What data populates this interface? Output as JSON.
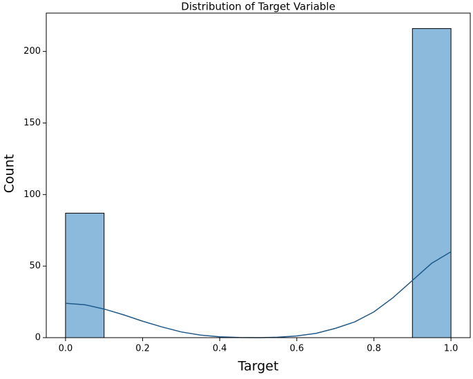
{
  "chart_data": {
    "type": "histogram",
    "title": "Distribution of Target Variable",
    "x_label": "Target",
    "y_label": "Count",
    "bins": [
      0,
      0.1,
      0.2,
      0.3,
      0.4,
      0.5,
      0.6,
      0.7,
      0.8,
      0.9,
      1.0
    ],
    "counts": [
      87,
      0,
      0,
      0,
      0,
      0,
      0,
      0,
      0,
      216
    ],
    "color": "#8bbadc",
    "edge_color": "#000000",
    "kde": {
      "x": [
        0,
        0.05,
        0.1,
        0.15,
        0.2,
        0.25,
        0.3,
        0.35,
        0.4,
        0.45,
        0.5,
        0.55,
        0.6,
        0.65,
        0.7,
        0.75,
        0.8,
        0.85,
        0.9,
        0.95,
        1.0
      ],
      "values": [
        24,
        23,
        20,
        16,
        11.5,
        7.5,
        4,
        1.8,
        0.6,
        0.1,
        0,
        0.3,
        1.2,
        3,
        6.5,
        11,
        18,
        28,
        40,
        52,
        60
      ],
      "color": "#1f5a8a"
    },
    "xlim": [
      -0.05,
      1.05
    ],
    "xticks": [
      {
        "value": 0,
        "label": "0.0"
      },
      {
        "value": 0.2,
        "label": "0.2"
      },
      {
        "value": 0.4,
        "label": "0.4"
      },
      {
        "value": 0.6,
        "label": "0.6"
      },
      {
        "value": 0.8,
        "label": "0.8"
      },
      {
        "value": 1.0,
        "label": "1.0"
      }
    ],
    "ylim": [
      0,
      226.8
    ],
    "yticks": [
      0,
      50,
      100,
      150,
      200
    ],
    "grid": false
  }
}
